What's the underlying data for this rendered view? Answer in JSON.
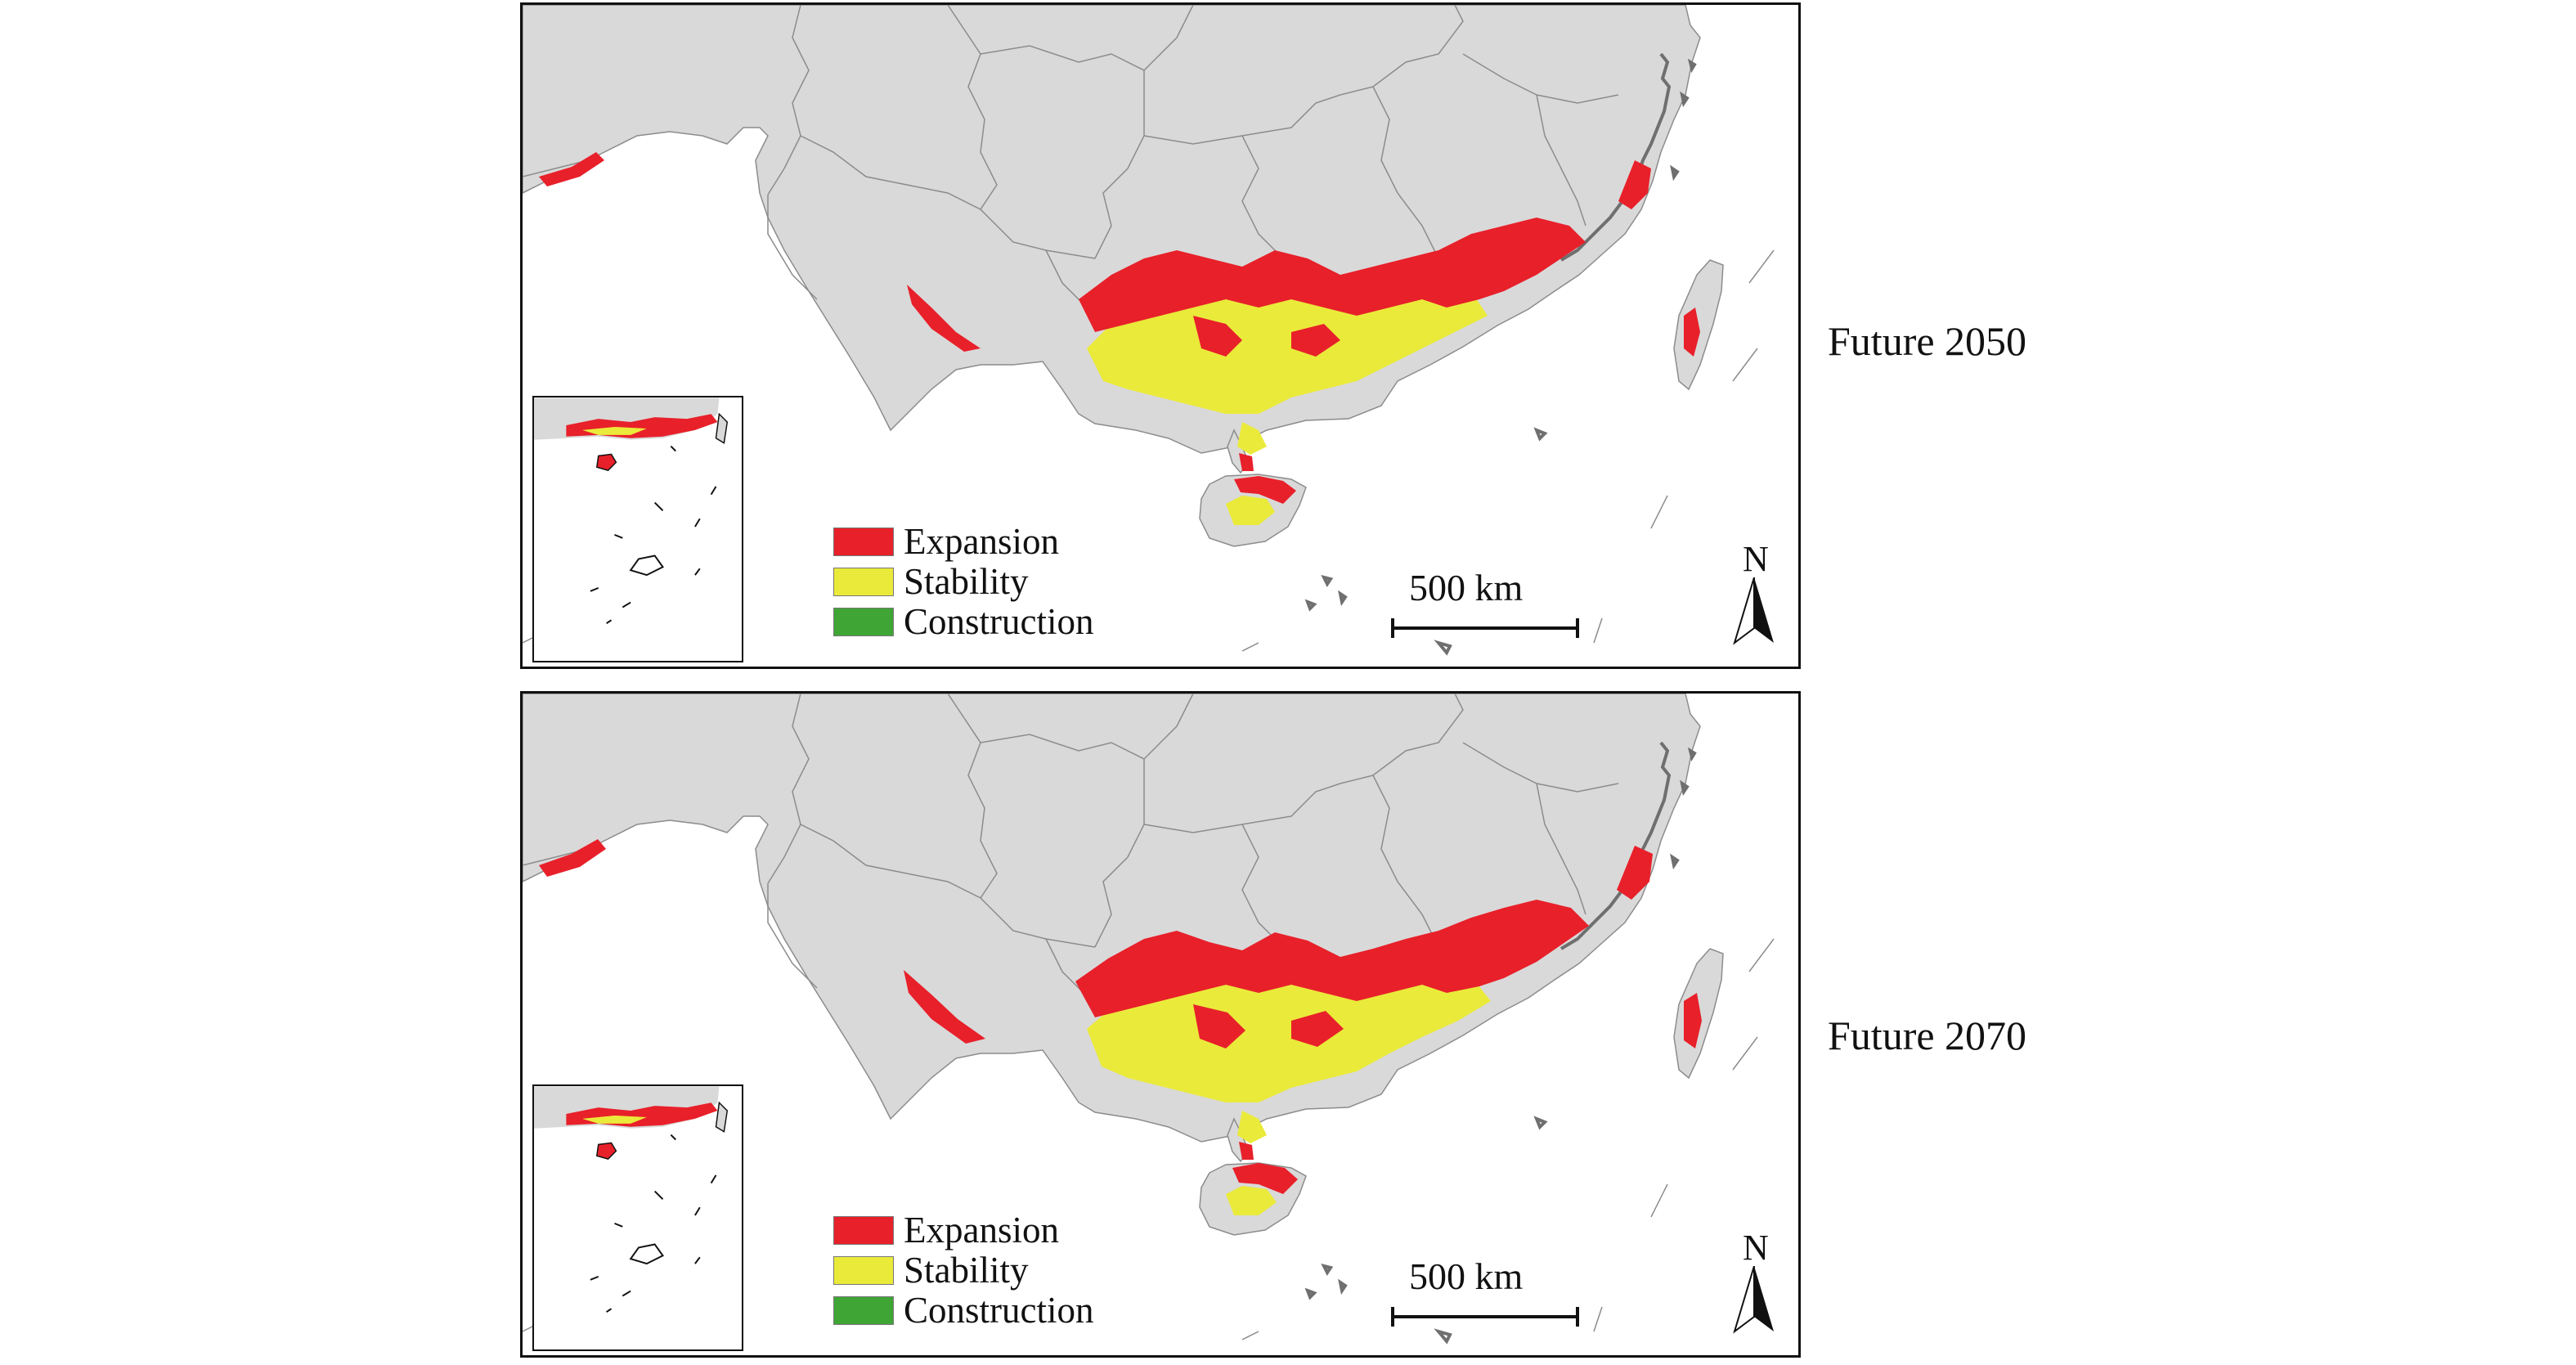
{
  "colors": {
    "land": "#d9d9d9",
    "border": "#8c8c8c",
    "coast_islands": "#6f6f6f",
    "expansion": "#e8202a",
    "stability": "#eaea3a",
    "construction": "#3fa535",
    "sea": "#ffffff"
  },
  "maps": [
    {
      "period_label": "Future 2050",
      "legend": [
        {
          "label": "Expansion",
          "color_key": "expansion"
        },
        {
          "label": "Stability",
          "color_key": "stability"
        },
        {
          "label": "Construction",
          "color_key": "construction"
        }
      ],
      "scale_label": "500 km",
      "north_label": "N"
    },
    {
      "period_label": "Future 2070",
      "legend": [
        {
          "label": "Expansion",
          "color_key": "expansion"
        },
        {
          "label": "Stability",
          "color_key": "stability"
        },
        {
          "label": "Construction",
          "color_key": "construction"
        }
      ],
      "scale_label": "500 km",
      "north_label": "N"
    }
  ]
}
